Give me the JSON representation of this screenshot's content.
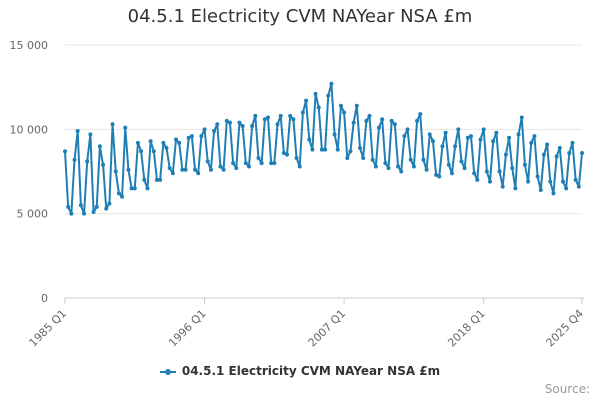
{
  "chart_data": {
    "type": "line",
    "title": "04.5.1 Electricity CVM NAYear NSA £m",
    "xlabel": "",
    "ylabel": "",
    "ylim": [
      0,
      15000
    ],
    "yticks": [
      0,
      5000,
      10000,
      15000
    ],
    "ytick_labels": [
      "0",
      "5 000",
      "10 000",
      "15 000"
    ],
    "xtick_labels": [
      "1985 Q1",
      "1996 Q1",
      "2007 Q1",
      "2018 Q1",
      "2025 Q4"
    ],
    "xtick_index": [
      0,
      44,
      88,
      132,
      163
    ],
    "grid": true,
    "legend_placement": "bottom-center",
    "series": [
      {
        "name": "04.5.1 Electricity CVM NAYear NSA £m",
        "color": "#1f7fb5",
        "values": [
          8700,
          5400,
          5000,
          8200,
          9900,
          5500,
          5000,
          8100,
          9700,
          5100,
          5400,
          9000,
          7900,
          5300,
          5600,
          10300,
          7500,
          6200,
          6000,
          10100,
          7600,
          6500,
          6500,
          9200,
          8700,
          7000,
          6500,
          9300,
          8700,
          7000,
          7000,
          9200,
          8900,
          7700,
          7400,
          9400,
          9200,
          7600,
          7600,
          9500,
          9600,
          7600,
          7400,
          9600,
          10000,
          8100,
          7600,
          9900,
          10300,
          7800,
          7600,
          10500,
          10400,
          8000,
          7700,
          10400,
          10200,
          8000,
          7800,
          10200,
          10800,
          8300,
          8000,
          10600,
          10700,
          8000,
          8000,
          10300,
          10800,
          8600,
          8500,
          10800,
          10600,
          8300,
          7800,
          11000,
          11700,
          9400,
          8800,
          12100,
          11300,
          8800,
          8800,
          12000,
          12700,
          9700,
          8800,
          11400,
          11000,
          8300,
          8700,
          10400,
          11400,
          8900,
          8300,
          10500,
          10800,
          8200,
          7800,
          10100,
          10600,
          8000,
          7700,
          10500,
          10300,
          7800,
          7500,
          9600,
          10000,
          8200,
          7800,
          10500,
          10900,
          8200,
          7600,
          9700,
          9300,
          7300,
          7200,
          9000,
          9800,
          7900,
          7400,
          9000,
          10000,
          8100,
          7700,
          9500,
          9600,
          7400,
          7000,
          9400,
          10000,
          7500,
          6900,
          9300,
          9800,
          7500,
          6600,
          8500,
          9500,
          7700,
          6500,
          9700,
          10700,
          7900,
          6900,
          9200,
          9600,
          7200,
          6400,
          8500,
          9100,
          6900,
          6200,
          8400,
          8900,
          6900,
          6500,
          8600,
          9200,
          7000,
          6600,
          8600
        ]
      }
    ]
  },
  "legend": {
    "label": "04.5.1 Electricity CVM NAYear NSA £m"
  },
  "credits": {
    "label": "Source:"
  }
}
